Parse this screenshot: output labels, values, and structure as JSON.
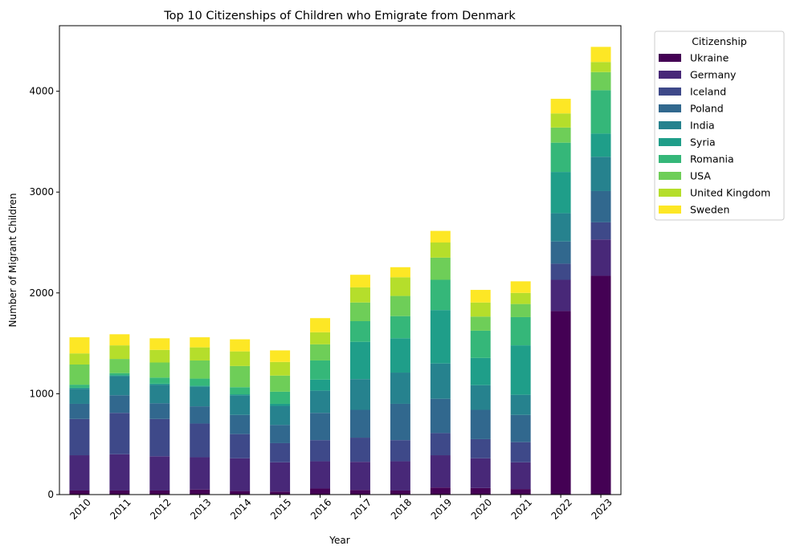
{
  "chart_data": {
    "type": "bar",
    "stacked": true,
    "title": "Top 10 Citizenships of Children who Emigrate from Denmark",
    "xlabel": "Year",
    "ylabel": "Number of Migrant Children",
    "ylim": [
      0,
      4650
    ],
    "yticks": [
      "0",
      "1000",
      "2000",
      "3000",
      "4000"
    ],
    "grid": false,
    "legend_title": "Citizenship",
    "legend_position": "outside-right",
    "categories": [
      "2010",
      "2011",
      "2012",
      "2013",
      "2014",
      "2015",
      "2016",
      "2017",
      "2018",
      "2019",
      "2020",
      "2021",
      "2022",
      "2023"
    ],
    "series": [
      {
        "name": "Ukraine",
        "color": "#440154",
        "values": [
          40,
          40,
          40,
          50,
          35,
          30,
          60,
          45,
          40,
          70,
          65,
          55,
          1820,
          2170
        ]
      },
      {
        "name": "Germany",
        "color": "#482878",
        "values": [
          350,
          360,
          340,
          320,
          325,
          290,
          270,
          280,
          290,
          320,
          295,
          265,
          310,
          360
        ]
      },
      {
        "name": "Iceland",
        "color": "#3e4989",
        "values": [
          360,
          410,
          370,
          335,
          240,
          190,
          210,
          240,
          210,
          220,
          190,
          200,
          160,
          170
        ]
      },
      {
        "name": "Poland",
        "color": "#31688e",
        "values": [
          150,
          175,
          155,
          170,
          190,
          180,
          270,
          275,
          360,
          340,
          290,
          270,
          220,
          310
        ]
      },
      {
        "name": "India",
        "color": "#26828e",
        "values": [
          150,
          190,
          185,
          195,
          195,
          190,
          220,
          305,
          310,
          350,
          245,
          200,
          280,
          340
        ]
      },
      {
        "name": "Syria",
        "color": "#1f9e89",
        "values": [
          10,
          10,
          10,
          10,
          10,
          20,
          110,
          370,
          340,
          530,
          270,
          490,
          410,
          230
        ]
      },
      {
        "name": "Romania",
        "color": "#35b779",
        "values": [
          30,
          20,
          60,
          70,
          70,
          120,
          190,
          205,
          220,
          300,
          270,
          280,
          290,
          430
        ]
      },
      {
        "name": "USA",
        "color": "#6ece58",
        "values": [
          200,
          140,
          150,
          180,
          210,
          160,
          160,
          185,
          200,
          220,
          140,
          130,
          150,
          180
        ]
      },
      {
        "name": "United Kingdom",
        "color": "#b5de2b",
        "values": [
          110,
          135,
          125,
          130,
          145,
          135,
          120,
          150,
          185,
          150,
          140,
          110,
          140,
          100
        ]
      },
      {
        "name": "Sweden",
        "color": "#fde725",
        "values": [
          160,
          110,
          115,
          100,
          120,
          115,
          140,
          125,
          100,
          115,
          125,
          115,
          145,
          150
        ]
      }
    ]
  }
}
